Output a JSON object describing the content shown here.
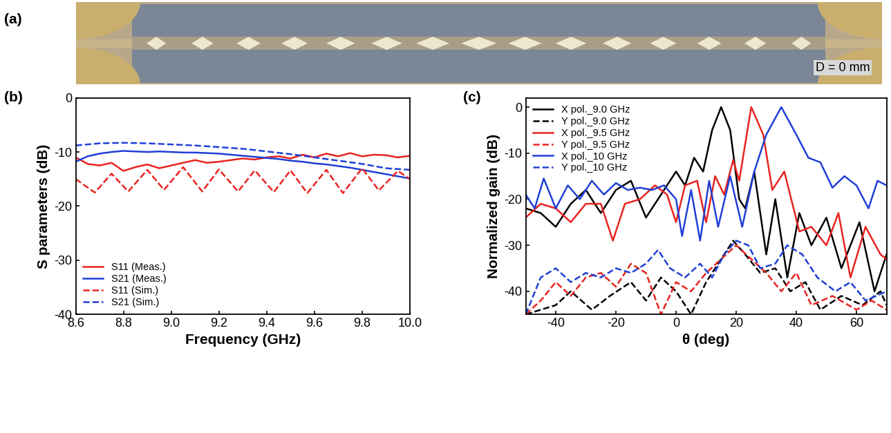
{
  "photo": {
    "label": "(a)",
    "annotation": "D = 0 mm"
  },
  "chart_data": [
    {
      "type": "line",
      "title": "(b)",
      "x_label": "Frequency (GHz)",
      "y_label": "S parameters (dB)",
      "xlim": [
        8.6,
        10.0
      ],
      "xticks": [
        8.6,
        8.8,
        9.0,
        9.2,
        9.4,
        9.6,
        9.8,
        10.0
      ],
      "ylim": [
        -40,
        0
      ],
      "yticks": [
        -40,
        -30,
        -20,
        -10,
        0
      ],
      "legend": "lower left",
      "series": [
        {
          "name": "S11 (Meas.)",
          "color": "#e8231f",
          "line_style": "solid",
          "x": [
            8.6,
            8.65,
            8.7,
            8.75,
            8.8,
            8.85,
            8.9,
            8.95,
            9.0,
            9.05,
            9.1,
            9.15,
            9.2,
            9.25,
            9.3,
            9.35,
            9.4,
            9.45,
            9.5,
            9.55,
            9.6,
            9.65,
            9.7,
            9.75,
            9.8,
            9.85,
            9.9,
            9.95,
            10.0
          ],
          "values": [
            -11.0,
            -12.2,
            -12.5,
            -12.0,
            -13.5,
            -12.8,
            -12.3,
            -13.0,
            -12.5,
            -12.0,
            -11.5,
            -12.0,
            -11.8,
            -11.5,
            -11.2,
            -11.4,
            -11.0,
            -10.8,
            -11.2,
            -10.5,
            -11.0,
            -10.3,
            -10.8,
            -10.2,
            -10.8,
            -10.5,
            -10.6,
            -11.0,
            -10.7
          ]
        },
        {
          "name": "S21 (Meas.)",
          "color": "#1f3fd6",
          "line_style": "solid",
          "x": [
            8.6,
            8.65,
            8.7,
            8.75,
            8.8,
            8.85,
            8.9,
            8.95,
            9.0,
            9.05,
            9.1,
            9.15,
            9.2,
            9.25,
            9.3,
            9.35,
            9.4,
            9.45,
            9.5,
            9.55,
            9.6,
            9.65,
            9.7,
            9.75,
            9.8,
            9.85,
            9.9,
            9.95,
            10.0
          ],
          "values": [
            -11.8,
            -10.8,
            -10.3,
            -10.0,
            -9.8,
            -9.9,
            -10.0,
            -9.9,
            -10.0,
            -10.1,
            -10.1,
            -10.2,
            -10.3,
            -10.5,
            -10.7,
            -10.9,
            -11.1,
            -11.3,
            -11.6,
            -11.8,
            -12.1,
            -12.3,
            -12.6,
            -12.9,
            -13.3,
            -13.7,
            -14.1,
            -14.5,
            -14.9
          ]
        },
        {
          "name": "S11 (Sim.)",
          "color": "#e8231f",
          "line_style": "dashed",
          "x": [
            8.6,
            8.68,
            8.75,
            8.82,
            8.9,
            8.97,
            9.05,
            9.13,
            9.2,
            9.28,
            9.35,
            9.43,
            9.5,
            9.57,
            9.65,
            9.72,
            9.8,
            9.87,
            9.95,
            10.0
          ],
          "values": [
            -15.0,
            -17.5,
            -14.0,
            -17.3,
            -13.3,
            -17.0,
            -12.8,
            -17.3,
            -13.2,
            -17.3,
            -13.4,
            -17.4,
            -13.4,
            -17.6,
            -13.3,
            -17.6,
            -13.0,
            -17.1,
            -13.5,
            -15.0
          ]
        },
        {
          "name": "S21 (Sim.)",
          "color": "#1f3fd6",
          "line_style": "dashed",
          "x": [
            8.6,
            8.7,
            8.8,
            8.9,
            9.0,
            9.1,
            9.2,
            9.3,
            9.4,
            9.5,
            9.6,
            9.7,
            9.8,
            9.9,
            10.0
          ],
          "values": [
            -8.8,
            -8.4,
            -8.3,
            -8.4,
            -8.6,
            -8.8,
            -9.1,
            -9.4,
            -9.9,
            -10.4,
            -11.0,
            -11.6,
            -12.2,
            -13.0,
            -13.3
          ]
        }
      ]
    },
    {
      "type": "line",
      "title": "(c)",
      "x_label": "θ (deg)",
      "y_label": "Normalized gain (dB)",
      "xlim": [
        -50,
        70
      ],
      "xticks": [
        -40,
        -20,
        0,
        20,
        40,
        60
      ],
      "ylim": [
        -45,
        2
      ],
      "yticks": [
        -40,
        -30,
        -20,
        -10,
        0
      ],
      "legend": "upper left",
      "series": [
        {
          "name": "X pol._9.0 GHz",
          "color": "#000000",
          "line_style": "solid",
          "x": [
            -50,
            -45,
            -40,
            -35,
            -30,
            -25,
            -20,
            -15,
            -10,
            -5,
            0,
            3,
            6,
            9,
            12,
            15,
            18,
            21,
            23,
            26,
            30,
            33,
            37,
            41,
            45,
            50,
            55,
            61,
            66,
            70
          ],
          "values": [
            -22,
            -23,
            -26,
            -21,
            -18,
            -23,
            -18,
            -16,
            -24,
            -19,
            -14,
            -17,
            -11,
            -14,
            -5,
            0,
            -5,
            -20,
            -22,
            -14,
            -32,
            -20,
            -37,
            -23,
            -30,
            -24,
            -35,
            -25,
            -40,
            -32
          ]
        },
        {
          "name": "Y pol._9.0 GHz",
          "color": "#000000",
          "line_style": "dashed",
          "x": [
            -50,
            -40,
            -35,
            -28,
            -22,
            -15,
            -10,
            -5,
            0,
            5,
            10,
            15,
            19,
            23,
            28,
            33,
            38,
            43,
            48,
            55,
            62,
            68,
            70
          ],
          "values": [
            -45,
            -43,
            -40,
            -44,
            -41,
            -38,
            -42,
            -37,
            -40,
            -45,
            -38,
            -33,
            -29,
            -32,
            -36,
            -35,
            -40,
            -38,
            -44,
            -41,
            -43,
            -40,
            -43
          ]
        },
        {
          "name": "X pol._9.5 GHz",
          "color": "#e8231f",
          "line_style": "solid",
          "x": [
            -50,
            -45,
            -40,
            -35,
            -30,
            -25,
            -21,
            -17,
            -12,
            -7,
            -3,
            0,
            3,
            7,
            10,
            13,
            16,
            19,
            21,
            25,
            29,
            32,
            36,
            41,
            45,
            50,
            54,
            58,
            63,
            68,
            70
          ],
          "values": [
            -24,
            -21,
            -22,
            -25,
            -21,
            -21,
            -29,
            -21,
            -20,
            -17,
            -19,
            -25,
            -17,
            -16,
            -25,
            -15,
            -19,
            -11.5,
            -16,
            0,
            -6,
            -18,
            -14,
            -27,
            -26,
            -30,
            -23,
            -37,
            -26,
            -32,
            -33
          ]
        },
        {
          "name": "Y pol._9.5 GHz",
          "color": "#e8231f",
          "line_style": "dashed",
          "x": [
            -50,
            -45,
            -40,
            -35,
            -30,
            -25,
            -20,
            -15,
            -10,
            -5,
            0,
            5,
            10,
            15,
            20,
            25,
            30,
            35,
            40,
            45,
            52,
            60,
            65,
            70
          ],
          "values": [
            -45,
            -42,
            -38,
            -41,
            -37,
            -36,
            -39,
            -34,
            -36,
            -45,
            -38,
            -40,
            -36,
            -33,
            -30,
            -33,
            -36,
            -40,
            -36,
            -43,
            -41,
            -44,
            -42,
            -44
          ]
        },
        {
          "name": "X pol._10 GHz",
          "color": "#1f3fd6",
          "line_style": "solid",
          "x": [
            -50,
            -47,
            -44,
            -40,
            -36,
            -32,
            -28,
            -24,
            -20,
            -16,
            -12,
            -8,
            -4,
            0,
            2,
            5,
            8,
            11,
            14,
            18,
            22,
            26,
            30,
            35,
            40,
            44,
            48,
            52,
            56,
            60,
            64,
            67,
            70
          ],
          "values": [
            -19,
            -22,
            -15.5,
            -22,
            -17,
            -20,
            -16,
            -19,
            -16.5,
            -18,
            -17.5,
            -18,
            -17,
            -20,
            -28,
            -18,
            -29,
            -16,
            -26,
            -15,
            -26,
            -14,
            -6,
            0,
            -6,
            -11,
            -12,
            -17.5,
            -15,
            -17,
            -22,
            -16,
            -17
          ]
        },
        {
          "name": "Y pol._10 GHz",
          "color": "#1f3fd6",
          "line_style": "dashed",
          "x": [
            -50,
            -45,
            -40,
            -35,
            -30,
            -25,
            -20,
            -15,
            -10,
            -6,
            -2,
            3,
            8,
            12,
            16,
            20,
            24,
            28,
            33,
            37,
            42,
            47,
            53,
            58,
            63,
            70
          ],
          "values": [
            -45,
            -37,
            -35,
            -38,
            -36,
            -37,
            -35,
            -36,
            -34,
            -31,
            -35,
            -37,
            -34,
            -37,
            -32,
            -29,
            -30,
            -35,
            -34,
            -30,
            -32,
            -37,
            -40,
            -38,
            -42,
            -40
          ]
        }
      ]
    }
  ]
}
